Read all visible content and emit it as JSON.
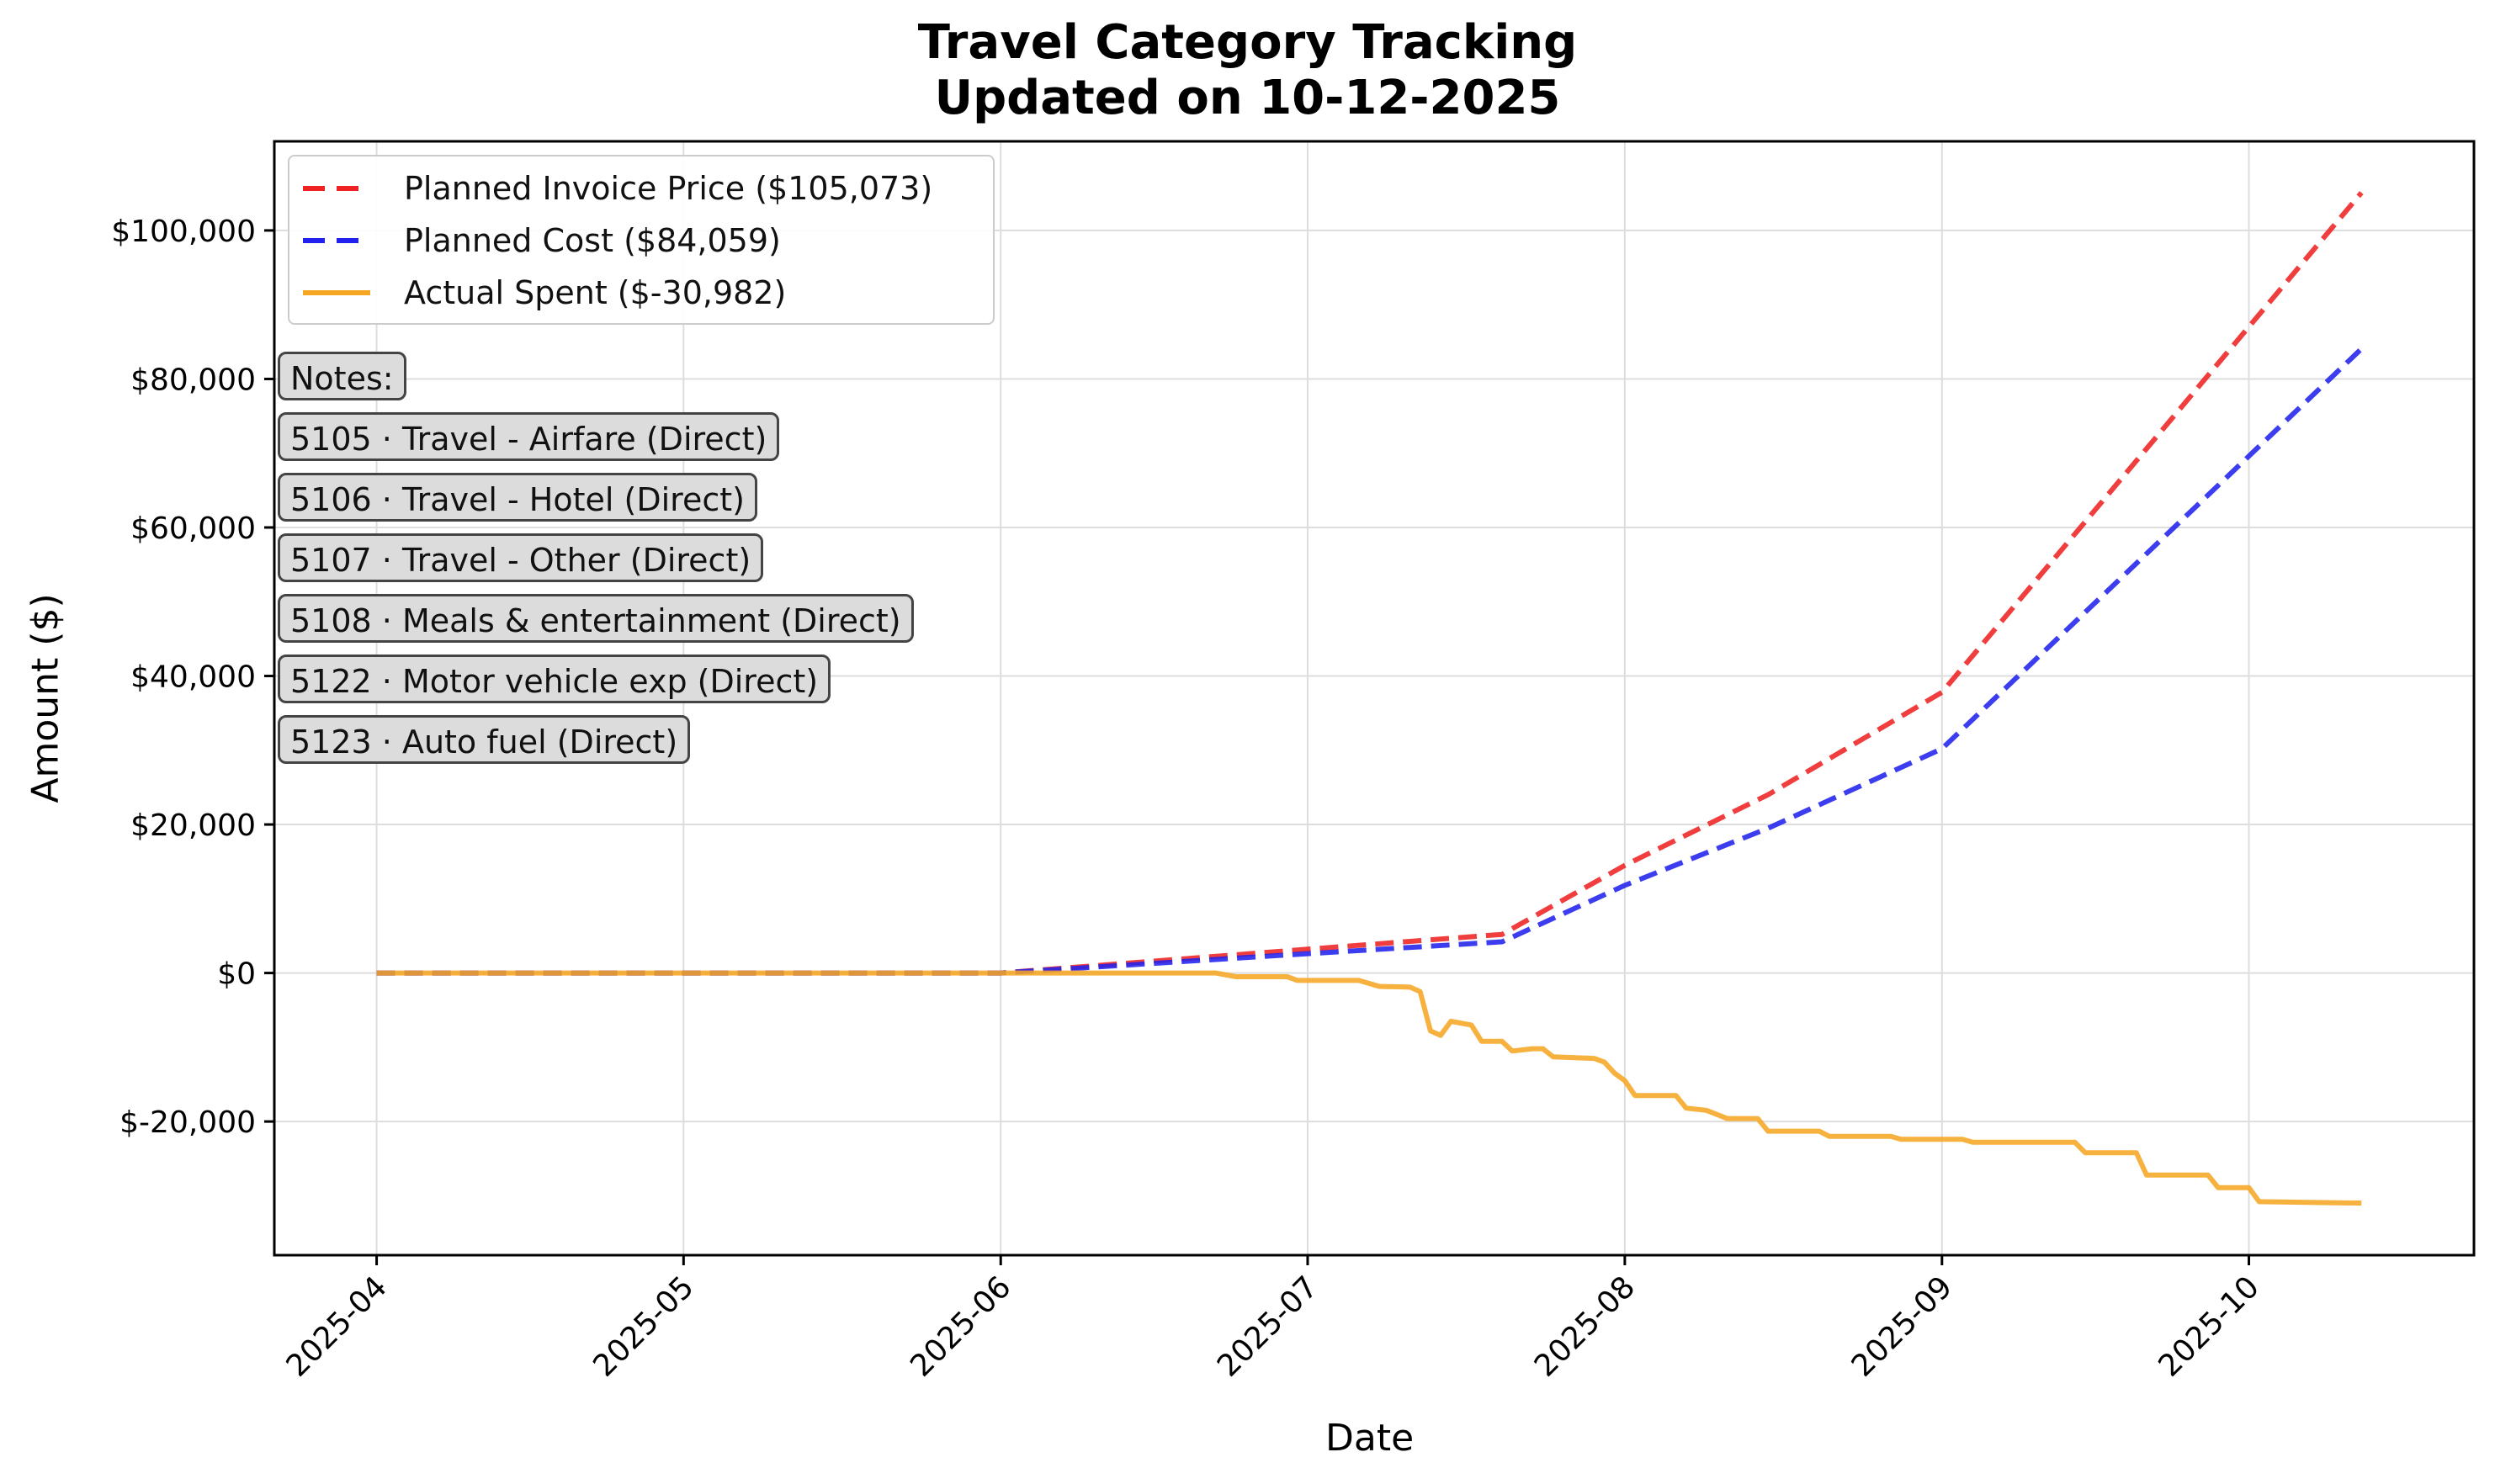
{
  "title": "Travel Category Tracking",
  "subtitle": "Updated on 10-12-2025",
  "notes_label": "Notes:",
  "notes": [
    "5105 · Travel - Airfare (Direct)",
    "5106 · Travel - Hotel (Direct)",
    "5107 · Travel - Other (Direct)",
    "5108 · Meals & entertainment (Direct)",
    "5122 · Motor vehicle exp (Direct)",
    "5123 · Auto fuel (Direct)"
  ],
  "chart_data": {
    "type": "line",
    "xlabel": "Date",
    "ylabel": "Amount ($)",
    "x_ticks": [
      "2025-04",
      "2025-05",
      "2025-06",
      "2025-07",
      "2025-08",
      "2025-09",
      "2025-10"
    ],
    "y_ticks": [
      -20000,
      0,
      20000,
      40000,
      60000,
      80000,
      100000
    ],
    "y_tick_labels": [
      "$-20,000",
      "$0",
      "$20,000",
      "$40,000",
      "$60,000",
      "$80,000",
      "$100,000"
    ],
    "xlim": [
      "2025-03-22",
      "2025-10-23"
    ],
    "ylim": [
      -38000,
      112000
    ],
    "grid": true,
    "legend_position": "upper-left",
    "series": [
      {
        "name": "Planned Invoice Price ($105,073)",
        "color": "#ee2222",
        "style": "dashed",
        "points": [
          [
            "2025-04-01",
            0
          ],
          [
            "2025-06-01",
            0
          ],
          [
            "2025-07-01",
            3200
          ],
          [
            "2025-07-20",
            5200
          ],
          [
            "2025-08-01",
            14500
          ],
          [
            "2025-08-15",
            24000
          ],
          [
            "2025-09-01",
            37800
          ],
          [
            "2025-10-12",
            105073
          ]
        ]
      },
      {
        "name": "Planned Cost ($84,059)",
        "color": "#2222ee",
        "style": "dashed",
        "points": [
          [
            "2025-04-01",
            0
          ],
          [
            "2025-06-01",
            0
          ],
          [
            "2025-07-01",
            2600
          ],
          [
            "2025-07-20",
            4200
          ],
          [
            "2025-08-01",
            11800
          ],
          [
            "2025-08-15",
            19500
          ],
          [
            "2025-09-01",
            30200
          ],
          [
            "2025-10-12",
            84059
          ]
        ]
      },
      {
        "name": "Actual Spent ($-30,982)",
        "color": "#f5a623",
        "style": "solid",
        "points": [
          [
            "2025-04-01",
            0
          ],
          [
            "2025-06-22",
            0
          ],
          [
            "2025-06-24",
            -500
          ],
          [
            "2025-06-29",
            -500
          ],
          [
            "2025-06-30",
            -1000
          ],
          [
            "2025-07-06",
            -1000
          ],
          [
            "2025-07-08",
            -1800
          ],
          [
            "2025-07-11",
            -1900
          ],
          [
            "2025-07-12",
            -2500
          ],
          [
            "2025-07-13",
            -7800
          ],
          [
            "2025-07-14",
            -8400
          ],
          [
            "2025-07-15",
            -6500
          ],
          [
            "2025-07-17",
            -7000
          ],
          [
            "2025-07-18",
            -9200
          ],
          [
            "2025-07-20",
            -9200
          ],
          [
            "2025-07-21",
            -10500
          ],
          [
            "2025-07-23",
            -10200
          ],
          [
            "2025-07-24",
            -10200
          ],
          [
            "2025-07-25",
            -11300
          ],
          [
            "2025-07-29",
            -11500
          ],
          [
            "2025-07-30",
            -12000
          ],
          [
            "2025-07-31",
            -13500
          ],
          [
            "2025-08-01",
            -14500
          ],
          [
            "2025-08-02",
            -16500
          ],
          [
            "2025-08-06",
            -16500
          ],
          [
            "2025-08-07",
            -18200
          ],
          [
            "2025-08-09",
            -18500
          ],
          [
            "2025-08-11",
            -19600
          ],
          [
            "2025-08-14",
            -19600
          ],
          [
            "2025-08-15",
            -21300
          ],
          [
            "2025-08-20",
            -21300
          ],
          [
            "2025-08-21",
            -22000
          ],
          [
            "2025-08-27",
            -22000
          ],
          [
            "2025-08-28",
            -22400
          ],
          [
            "2025-09-03",
            -22400
          ],
          [
            "2025-09-04",
            -22800
          ],
          [
            "2025-09-14",
            -22800
          ],
          [
            "2025-09-15",
            -24200
          ],
          [
            "2025-09-20",
            -24200
          ],
          [
            "2025-09-21",
            -27200
          ],
          [
            "2025-09-27",
            -27200
          ],
          [
            "2025-09-28",
            -28900
          ],
          [
            "2025-10-01",
            -28900
          ],
          [
            "2025-10-02",
            -30800
          ],
          [
            "2025-10-12",
            -30982
          ]
        ]
      }
    ]
  }
}
